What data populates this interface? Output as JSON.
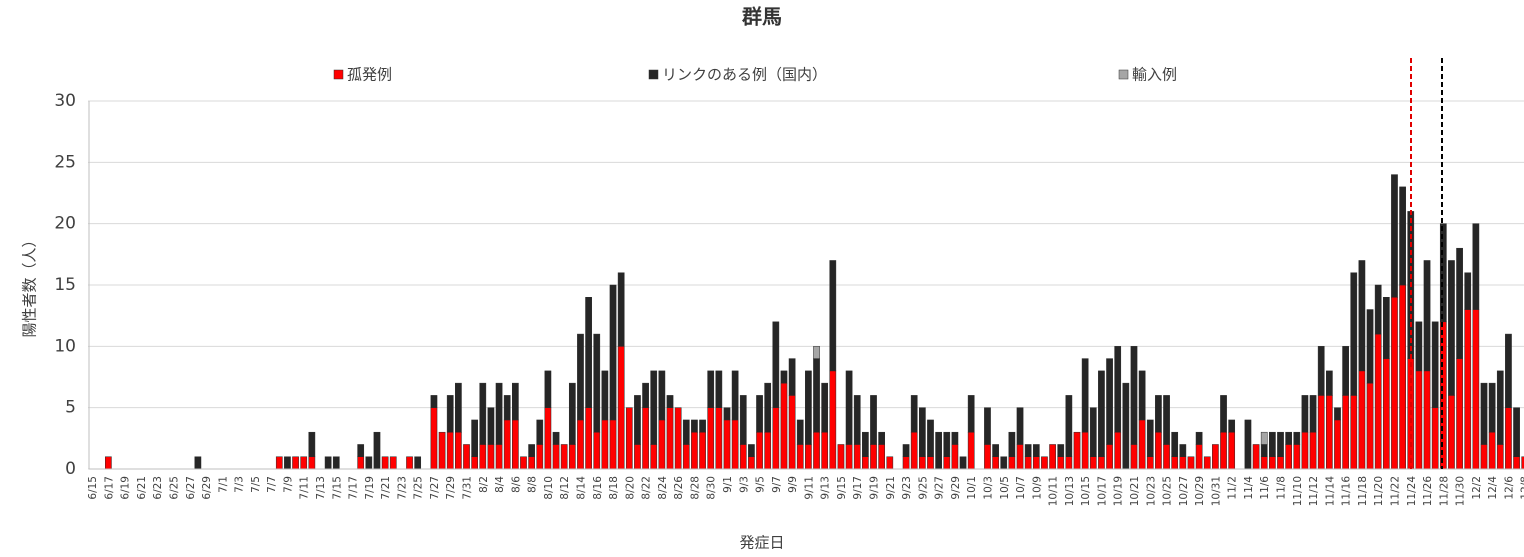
{
  "chart_data": {
    "type": "bar",
    "stacked": true,
    "title": "群馬",
    "xlabel": "発症日",
    "ylabel": "陽性者数（人）",
    "categories": [
      "6/15",
      null,
      "6/17",
      null,
      "6/19",
      null,
      "6/21",
      null,
      "6/23",
      null,
      "6/25",
      null,
      "6/27",
      null,
      "6/29",
      null,
      "7/1",
      null,
      "7/3",
      null,
      "7/5",
      null,
      "7/7",
      null,
      "7/9",
      null,
      "7/11",
      null,
      "7/13",
      null,
      "7/15",
      null,
      "7/17",
      null,
      "7/19",
      null,
      "7/21",
      null,
      "7/23",
      null,
      "7/25",
      null,
      "7/27",
      null,
      "7/29",
      null,
      "7/31",
      null,
      "8/2",
      null,
      "8/4",
      null,
      "8/6",
      null,
      "8/8",
      null,
      "8/10",
      null,
      "8/12",
      null,
      "8/14",
      null,
      "8/16",
      null,
      "8/18",
      null,
      "8/20",
      null,
      "8/22",
      null,
      "8/24",
      null,
      "8/26",
      null,
      "8/28",
      null,
      "8/30",
      null,
      "9/1",
      null,
      "9/3",
      null,
      "9/5",
      null,
      "9/7",
      null,
      "9/9",
      null,
      "9/11",
      null,
      "9/13",
      null,
      "9/15",
      null,
      "9/17",
      null,
      "9/19",
      null,
      "9/21",
      null,
      "9/23",
      null,
      "9/25",
      null,
      "9/27",
      null,
      "9/29",
      null,
      "10/1",
      null,
      "10/3",
      null,
      "10/5",
      null,
      "10/7",
      null,
      "10/9",
      null,
      "10/11",
      null,
      "10/13",
      null,
      "10/15",
      null,
      "10/17",
      null,
      "10/19",
      null,
      "10/21",
      null,
      "10/23",
      null,
      "10/25",
      null,
      "10/27",
      null,
      "10/29",
      null,
      "10/31",
      null,
      "11/2",
      null,
      "11/4",
      null,
      "11/6",
      null,
      "11/8",
      null,
      "11/10",
      null,
      "11/12",
      null,
      "11/14",
      null,
      "11/16",
      null,
      "11/18",
      null,
      "11/20",
      null,
      "11/22",
      null,
      "11/24",
      null,
      "11/26",
      null,
      "11/28",
      null,
      "11/30",
      null,
      "12/2",
      null,
      "12/4",
      null,
      "12/6",
      null,
      "12/8"
    ],
    "series": [
      {
        "name": "孤発例",
        "color": "#ff0000",
        "values": [
          0,
          0,
          1,
          0,
          0,
          0,
          0,
          0,
          0,
          0,
          0,
          0,
          0,
          0,
          0,
          0,
          0,
          0,
          0,
          0,
          0,
          0,
          0,
          1,
          0,
          1,
          1,
          1,
          0,
          0,
          0,
          0,
          0,
          1,
          0,
          0,
          1,
          1,
          0,
          1,
          0,
          0,
          5,
          3,
          3,
          3,
          2,
          1,
          2,
          2,
          2,
          4,
          4,
          1,
          1,
          2,
          5,
          2,
          2,
          2,
          4,
          5,
          3,
          4,
          4,
          10,
          5,
          2,
          5,
          2,
          4,
          5,
          5,
          2,
          3,
          3,
          5,
          5,
          4,
          4,
          2,
          1,
          3,
          3,
          5,
          7,
          6,
          2,
          2,
          3,
          3,
          8,
          2,
          2,
          2,
          1,
          2,
          2,
          1,
          0,
          1,
          3,
          1,
          1,
          0,
          1,
          2,
          0,
          3,
          0,
          2,
          1,
          0,
          1,
          2,
          1,
          1,
          1,
          2,
          1,
          1,
          3,
          3,
          1,
          1,
          2,
          3,
          0,
          2,
          4,
          1,
          3,
          2,
          1,
          1,
          1,
          2,
          1,
          2,
          3,
          3,
          0,
          0,
          2,
          1,
          1,
          1,
          2,
          2,
          3,
          3,
          6,
          6,
          4,
          6,
          6,
          8,
          7,
          11,
          9,
          14,
          15,
          9,
          8,
          8,
          5,
          12,
          6,
          9,
          13,
          13,
          2,
          3,
          2,
          5,
          1,
          1
        ]
      },
      {
        "name": "リンクのある例（国内）",
        "color": "#262626",
        "values": [
          0,
          0,
          0,
          0,
          0,
          0,
          0,
          0,
          0,
          0,
          0,
          0,
          0,
          1,
          0,
          0,
          0,
          0,
          0,
          0,
          0,
          0,
          0,
          0,
          1,
          0,
          0,
          2,
          0,
          1,
          1,
          0,
          0,
          1,
          1,
          3,
          0,
          0,
          0,
          0,
          1,
          0,
          1,
          0,
          3,
          4,
          0,
          3,
          5,
          3,
          5,
          2,
          3,
          0,
          1,
          2,
          3,
          1,
          0,
          5,
          7,
          9,
          8,
          4,
          11,
          6,
          0,
          4,
          2,
          6,
          4,
          1,
          0,
          2,
          1,
          1,
          3,
          3,
          1,
          4,
          4,
          1,
          3,
          4,
          7,
          1,
          3,
          2,
          6,
          6,
          4,
          9,
          0,
          6,
          4,
          2,
          4,
          1,
          0,
          0,
          1,
          3,
          4,
          3,
          3,
          2,
          1,
          1,
          3,
          0,
          3,
          1,
          1,
          2,
          3,
          1,
          1,
          0,
          0,
          1,
          5,
          0,
          6,
          4,
          7,
          7,
          7,
          7,
          8,
          4,
          3,
          3,
          4,
          2,
          1,
          0,
          1,
          0,
          0,
          3,
          1,
          0,
          4,
          0,
          1,
          2,
          2,
          1,
          1,
          3,
          3,
          4,
          2,
          1,
          4,
          10,
          9,
          6,
          4,
          5,
          10,
          8,
          12,
          4,
          9,
          7,
          8,
          11,
          9,
          3,
          7,
          5,
          4,
          6,
          6,
          4,
          0
        ]
      },
      {
        "name": "輸入例",
        "color": "#a6a6a6",
        "values": [
          0,
          0,
          0,
          0,
          0,
          0,
          0,
          0,
          0,
          0,
          0,
          0,
          0,
          0,
          0,
          0,
          0,
          0,
          0,
          0,
          0,
          0,
          0,
          0,
          0,
          0,
          0,
          0,
          0,
          0,
          0,
          0,
          0,
          0,
          0,
          0,
          0,
          0,
          0,
          0,
          0,
          0,
          0,
          0,
          0,
          0,
          0,
          0,
          0,
          0,
          0,
          0,
          0,
          0,
          0,
          0,
          0,
          0,
          0,
          0,
          0,
          0,
          0,
          0,
          0,
          0,
          0,
          0,
          0,
          0,
          0,
          0,
          0,
          0,
          0,
          0,
          0,
          0,
          0,
          0,
          0,
          0,
          0,
          0,
          0,
          0,
          0,
          0,
          0,
          1,
          0,
          0,
          0,
          0,
          0,
          0,
          0,
          0,
          0,
          0,
          0,
          0,
          0,
          0,
          0,
          0,
          0,
          0,
          0,
          0,
          0,
          0,
          0,
          0,
          0,
          0,
          0,
          0,
          0,
          0,
          0,
          0,
          0,
          0,
          0,
          0,
          0,
          0,
          0,
          0,
          0,
          0,
          0,
          0,
          0,
          0,
          0,
          0,
          0,
          0,
          0,
          0,
          0,
          0,
          1,
          0,
          0,
          0,
          0,
          0,
          0,
          0,
          0,
          0,
          0,
          0,
          0,
          0,
          0,
          0,
          0,
          0,
          0,
          0,
          0,
          0,
          0,
          0,
          0,
          0,
          0,
          0,
          0,
          0,
          0,
          0,
          0
        ]
      }
    ],
    "ylim": [
      0,
      30
    ],
    "yticks": [
      0,
      5,
      10,
      15,
      20,
      25,
      30
    ],
    "grid": true
  }
}
